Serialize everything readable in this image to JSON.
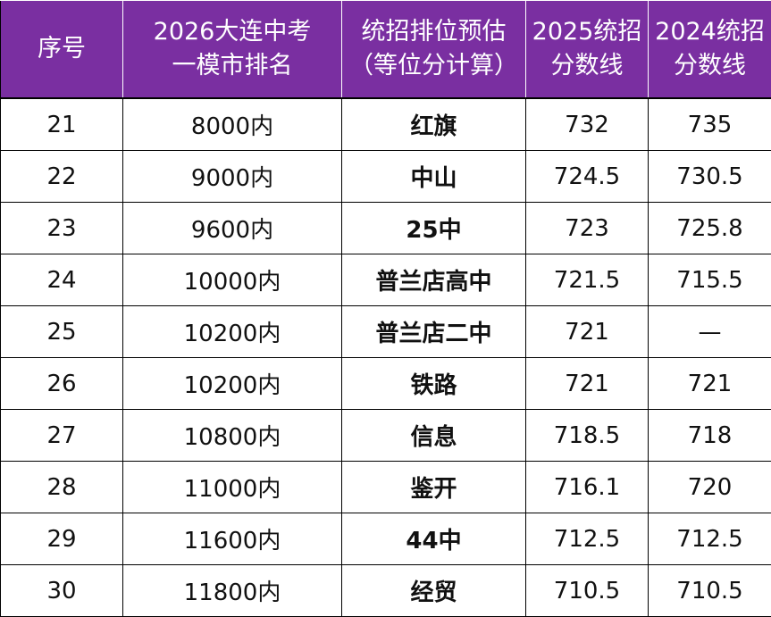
{
  "header": {
    "col0": [
      "序号"
    ],
    "col1": [
      "2026大连中考",
      "一模市排名"
    ],
    "col2": [
      "统招排位预估",
      "（等位分计算）"
    ],
    "col3": [
      "2025统招",
      "分数线"
    ],
    "col4": [
      "2024统招",
      "分数线"
    ]
  },
  "rows": [
    {
      "no": "21",
      "rank": "8000内",
      "school": "红旗",
      "s2025": "732",
      "s2024": "735"
    },
    {
      "no": "22",
      "rank": "9000内",
      "school": "中山",
      "s2025": "724.5",
      "s2024": "730.5"
    },
    {
      "no": "23",
      "rank": "9600内",
      "school": "25中",
      "s2025": "723",
      "s2024": "725.8"
    },
    {
      "no": "24",
      "rank": "10000内",
      "school": "普兰店高中",
      "s2025": "721.5",
      "s2024": "715.5"
    },
    {
      "no": "25",
      "rank": "10200内",
      "school": "普兰店二中",
      "s2025": "721",
      "s2024": "—"
    },
    {
      "no": "26",
      "rank": "10200内",
      "school": "铁路",
      "s2025": "721",
      "s2024": "721"
    },
    {
      "no": "27",
      "rank": "10800内",
      "school": "信息",
      "s2025": "718.5",
      "s2024": "718"
    },
    {
      "no": "28",
      "rank": "11000内",
      "school": "鉴开",
      "s2025": "716.1",
      "s2024": "720"
    },
    {
      "no": "29",
      "rank": "11600内",
      "school": "44中",
      "s2025": "712.5",
      "s2024": "712.5"
    },
    {
      "no": "30",
      "rank": "11800内",
      "school": "经贸",
      "s2025": "710.5",
      "s2024": "710.5"
    }
  ],
  "colors": {
    "header_bg": "#7a2fa1",
    "header_text": "#ffffff",
    "cell_text": "#111111",
    "grid": "#000000"
  }
}
